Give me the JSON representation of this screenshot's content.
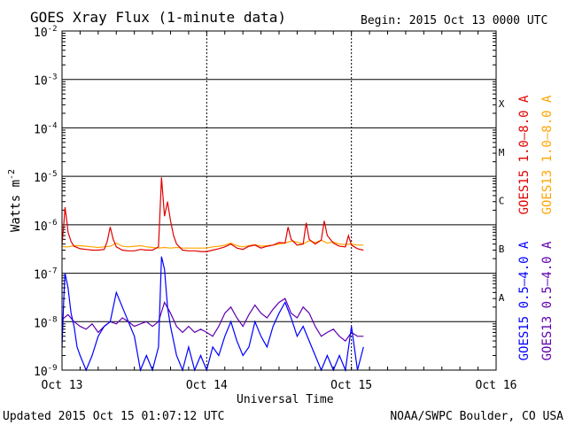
{
  "chart_data": {
    "type": "line",
    "title": "GOES Xray Flux (1-minute data)",
    "begin_label": "Begin:  2015 Oct 13 0000 UTC",
    "ylabel_main": "Watts m",
    "ylabel_sup": "-2",
    "xlabel": "Universal Time",
    "x_unit": "hours since begin",
    "xlim": [
      0,
      72
    ],
    "x_ticks": [
      {
        "x": 0,
        "label": "Oct 13"
      },
      {
        "x": 24,
        "label": "Oct 14"
      },
      {
        "x": 48,
        "label": "Oct 15"
      },
      {
        "x": 72,
        "label": "Oct 16"
      }
    ],
    "ylim_exp": [
      -9,
      -2
    ],
    "y_ticks": [
      {
        "exp": -2,
        "base": "10",
        "sup": "-2"
      },
      {
        "exp": -3,
        "base": "10",
        "sup": "-3"
      },
      {
        "exp": -4,
        "base": "10",
        "sup": "-4"
      },
      {
        "exp": -5,
        "base": "10",
        "sup": "-5"
      },
      {
        "exp": -6,
        "base": "10",
        "sup": "-6"
      },
      {
        "exp": -7,
        "base": "10",
        "sup": "-7"
      },
      {
        "exp": -8,
        "base": "10",
        "sup": "-8"
      },
      {
        "exp": -9,
        "base": "10",
        "sup": "-9"
      }
    ],
    "flare_classes": [
      {
        "label": "X",
        "exp": -3.5
      },
      {
        "label": "M",
        "exp": -4.5
      },
      {
        "label": "C",
        "exp": -5.5
      },
      {
        "label": "B",
        "exp": -6.5
      },
      {
        "label": "A",
        "exp": -7.5
      }
    ],
    "series": [
      {
        "name": "GOES13 1.0-8.0 A",
        "color": "#ffa500",
        "x": [
          0,
          0.5,
          1,
          2,
          3,
          4,
          5,
          6,
          7,
          8,
          9,
          10,
          11,
          12,
          13,
          14,
          15,
          16,
          17,
          18,
          19,
          20,
          21,
          22,
          23,
          24,
          25,
          26,
          27,
          28,
          29,
          30,
          31,
          32,
          33,
          34,
          35,
          36,
          37,
          38,
          39,
          40,
          41,
          42,
          43,
          44,
          45,
          46,
          47,
          48,
          49,
          50
        ],
        "y": [
          3.6e-07,
          3.5e-07,
          3.5e-07,
          3.7e-07,
          3.7e-07,
          3.6e-07,
          3.5e-07,
          3.4e-07,
          3.5e-07,
          3.6e-07,
          4.2e-07,
          3.6e-07,
          3.5e-07,
          3.6e-07,
          3.7e-07,
          3.5e-07,
          3.4e-07,
          3.3e-07,
          3.4e-07,
          3.3e-07,
          3.4e-07,
          3.3e-07,
          3.3e-07,
          3.3e-07,
          3.3e-07,
          3.3e-07,
          3.5e-07,
          3.6e-07,
          3.8e-07,
          4.2e-07,
          3.7e-07,
          3.5e-07,
          3.7e-07,
          3.9e-07,
          3.6e-07,
          3.7e-07,
          3.8e-07,
          4e-07,
          4.2e-07,
          4.6e-07,
          4.4e-07,
          4e-07,
          4.7e-07,
          4.3e-07,
          4.8e-07,
          4.2e-07,
          4.4e-07,
          4e-07,
          3.9e-07,
          4e-07,
          3.8e-07,
          3.8e-07
        ]
      },
      {
        "name": "GOES15 1.0-8.0 A",
        "color": "#e00000",
        "x": [
          0,
          0.3,
          0.5,
          0.8,
          1,
          1.5,
          2,
          3,
          4,
          5,
          6,
          7,
          7.5,
          8,
          8.5,
          9,
          10,
          11,
          12,
          13,
          14,
          15,
          16,
          16.5,
          17,
          17.5,
          18,
          18.5,
          19,
          20,
          21,
          22,
          23,
          24,
          25,
          26,
          27,
          28,
          29,
          30,
          31,
          32,
          33,
          34,
          35,
          36,
          37,
          37.5,
          38,
          39,
          40,
          40.5,
          41,
          42,
          43,
          43.5,
          44,
          45,
          46,
          47,
          47.5,
          48,
          49,
          50
        ],
        "y": [
          4e-07,
          1e-06,
          2.3e-06,
          1.2e-06,
          7e-07,
          4.5e-07,
          3.6e-07,
          3.2e-07,
          3.1e-07,
          3e-07,
          3e-07,
          3.1e-07,
          4.5e-07,
          9e-07,
          5e-07,
          3.5e-07,
          3e-07,
          2.9e-07,
          2.9e-07,
          3.1e-07,
          3e-07,
          3e-07,
          3.5e-07,
          9.5e-06,
          1.5e-06,
          3e-06,
          1.2e-06,
          6e-07,
          4e-07,
          3e-07,
          2.9e-07,
          2.9e-07,
          2.8e-07,
          2.8e-07,
          3e-07,
          3.2e-07,
          3.5e-07,
          4e-07,
          3.3e-07,
          3.1e-07,
          3.6e-07,
          3.8e-07,
          3.3e-07,
          3.6e-07,
          3.8e-07,
          4.3e-07,
          4.2e-07,
          9e-07,
          5e-07,
          3.8e-07,
          4e-07,
          1.1e-06,
          5e-07,
          4e-07,
          4.8e-07,
          1.2e-06,
          6e-07,
          4.2e-07,
          3.6e-07,
          3.5e-07,
          6e-07,
          3.8e-07,
          3.2e-07,
          3e-07
        ]
      },
      {
        "name": "GOES13 0.5-4.0 A",
        "color": "#6000b0",
        "x": [
          0,
          1,
          2,
          3,
          4,
          5,
          6,
          7,
          8,
          9,
          10,
          11,
          12,
          13,
          14,
          15,
          16,
          17,
          18,
          19,
          20,
          21,
          22,
          23,
          24,
          25,
          26,
          27,
          28,
          29,
          30,
          31,
          32,
          33,
          34,
          35,
          36,
          37,
          38,
          39,
          40,
          41,
          42,
          43,
          44,
          45,
          46,
          47,
          48,
          49,
          50
        ],
        "y": [
          1.1e-08,
          1.4e-08,
          1e-08,
          8e-09,
          7e-09,
          9e-09,
          6e-09,
          8e-09,
          1e-08,
          9e-09,
          1.2e-08,
          1e-08,
          8e-09,
          9e-09,
          1e-08,
          8e-09,
          1e-08,
          2.5e-08,
          1.5e-08,
          8e-09,
          6e-09,
          8e-09,
          6e-09,
          7e-09,
          6e-09,
          5e-09,
          8e-09,
          1.5e-08,
          2e-08,
          1.2e-08,
          8e-09,
          1.4e-08,
          2.2e-08,
          1.5e-08,
          1.2e-08,
          1.8e-08,
          2.5e-08,
          3e-08,
          1.5e-08,
          1.2e-08,
          2e-08,
          1.5e-08,
          8e-09,
          5e-09,
          6e-09,
          7e-09,
          5e-09,
          4e-09,
          6e-09,
          5e-09,
          5e-09
        ]
      },
      {
        "name": "GOES15 0.5-4.0 A",
        "color": "#0000ff",
        "x": [
          0,
          0.3,
          0.5,
          1,
          1.5,
          2,
          2.5,
          3,
          4,
          5,
          6,
          7,
          8,
          9,
          10,
          11,
          12,
          13,
          14,
          15,
          16,
          16.5,
          17,
          17.5,
          18,
          19,
          20,
          21,
          22,
          23,
          24,
          25,
          26,
          27,
          28,
          29,
          30,
          31,
          32,
          33,
          34,
          35,
          36,
          37,
          38,
          39,
          40,
          41,
          42,
          43,
          44,
          45,
          46,
          47,
          48,
          49,
          50
        ],
        "y": [
          3e-09,
          3e-08,
          1e-07,
          5e-08,
          1.5e-08,
          8e-09,
          3e-09,
          2e-09,
          1e-09,
          2e-09,
          5e-09,
          8e-09,
          1e-08,
          4e-08,
          2e-08,
          1e-08,
          5e-09,
          1e-09,
          2e-09,
          1e-09,
          3e-09,
          2.2e-07,
          1.2e-07,
          2e-08,
          8e-09,
          2e-09,
          1e-09,
          3e-09,
          1e-09,
          2e-09,
          1e-09,
          3e-09,
          2e-09,
          5e-09,
          1e-08,
          4e-09,
          2e-09,
          3e-09,
          1e-08,
          5e-09,
          3e-09,
          8e-09,
          1.5e-08,
          2.5e-08,
          1.2e-08,
          5e-09,
          8e-09,
          4e-09,
          2e-09,
          1e-09,
          2e-09,
          1e-09,
          2e-09,
          1e-09,
          8e-09,
          1e-09,
          3e-09
        ]
      }
    ],
    "right_legend": [
      {
        "label": "GOES15 1.0–8.0 A",
        "color": "#e00000"
      },
      {
        "label": "GOES13 1.0–8.0 A",
        "color": "#ffa500"
      },
      {
        "label": "GOES15 0.5–4.0 A",
        "color": "#0000ff"
      },
      {
        "label": "GOES13 0.5–4.0 A",
        "color": "#6000b0"
      }
    ],
    "footer_left": "Updated 2015 Oct 15 01:07:12 UTC",
    "footer_right": "NOAA/SWPC Boulder, CO USA"
  }
}
